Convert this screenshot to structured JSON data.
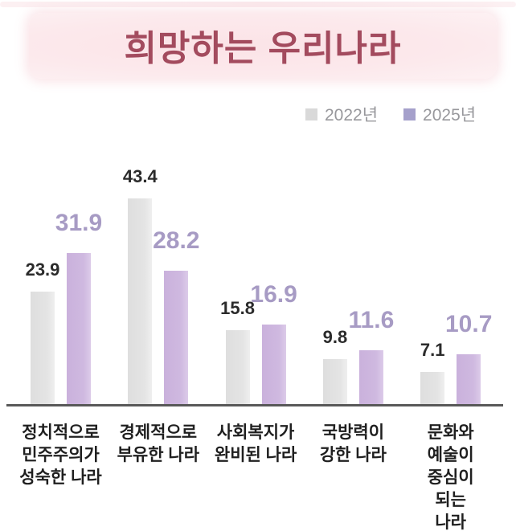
{
  "header": {
    "title": "희망하는 우리나라"
  },
  "legend": {
    "items": [
      {
        "label": "2022년",
        "swatch_color": "#d9d9d9"
      },
      {
        "label": "2025년",
        "swatch_color": "#a5a0cb"
      }
    ]
  },
  "colors": {
    "banner_background": "#fce9ec",
    "title_text": "#a34b5e",
    "bar_2022": "#e2e2e2",
    "bar_2025": "#cdb7df",
    "value_label_2022": "#2b2b2b",
    "value_label_2025": "#a79bc4",
    "axis_line": "#595959",
    "legend_text": "#98989c"
  },
  "chart_data": {
    "type": "bar",
    "title": "희망하는 우리나라",
    "categories": [
      "정치적으로\n민주주의가\n성숙한 나라",
      "경제적으로\n부유한 나라",
      "사회복지가\n완비된 나라",
      "국방력이\n강한 나라",
      "문화와\n예술이\n중심이 되는\n나라"
    ],
    "series": [
      {
        "name": "2022년",
        "values": [
          23.9,
          43.4,
          15.8,
          9.8,
          7.1
        ]
      },
      {
        "name": "2025년",
        "values": [
          31.9,
          28.2,
          16.9,
          11.6,
          10.7
        ]
      }
    ],
    "xlabel": "",
    "ylabel": "",
    "ylim": [
      0,
      50
    ],
    "grid": false,
    "legend_position": "top-right",
    "data_labels": true
  }
}
